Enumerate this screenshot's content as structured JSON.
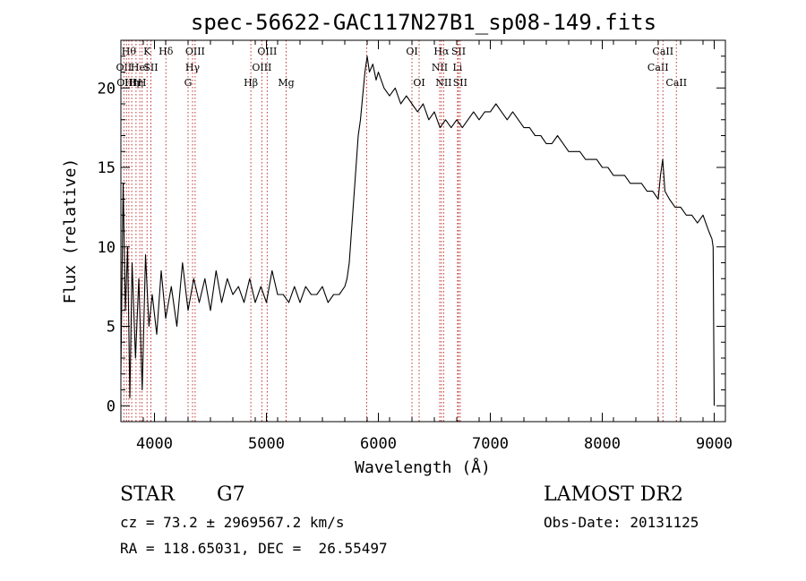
{
  "chart_data": {
    "type": "line",
    "title": "spec-56622-GAC117N27B1_sp08-149.fits",
    "xlabel": "Wavelength (Å)",
    "ylabel": "Flux (relative)",
    "xlim": [
      3700,
      9100
    ],
    "ylim": [
      -1,
      23
    ],
    "x_ticks": [
      4000,
      5000,
      6000,
      7000,
      8000,
      9000
    ],
    "y_ticks": [
      0,
      5,
      10,
      15,
      20
    ],
    "grid": false,
    "line_color": "#000000",
    "marker_color": "#c03030",
    "spectrum": {
      "x": [
        3700,
        3720,
        3740,
        3760,
        3780,
        3800,
        3830,
        3860,
        3890,
        3920,
        3950,
        3980,
        4020,
        4060,
        4100,
        4150,
        4200,
        4250,
        4300,
        4350,
        4400,
        4450,
        4500,
        4550,
        4600,
        4650,
        4700,
        4750,
        4800,
        4850,
        4900,
        4950,
        5000,
        5050,
        5100,
        5150,
        5200,
        5250,
        5300,
        5350,
        5400,
        5450,
        5500,
        5550,
        5600,
        5650,
        5700,
        5720,
        5740,
        5760,
        5780,
        5800,
        5820,
        5840,
        5860,
        5880,
        5900,
        5920,
        5950,
        5980,
        6000,
        6050,
        6100,
        6150,
        6200,
        6250,
        6300,
        6350,
        6400,
        6450,
        6500,
        6550,
        6600,
        6650,
        6700,
        6750,
        6800,
        6850,
        6900,
        6950,
        7000,
        7050,
        7100,
        7150,
        7200,
        7250,
        7300,
        7350,
        7400,
        7450,
        7500,
        7550,
        7600,
        7650,
        7700,
        7750,
        7800,
        7850,
        7900,
        7950,
        8000,
        8050,
        8100,
        8150,
        8200,
        8250,
        8300,
        8350,
        8400,
        8450,
        8500,
        8520,
        8540,
        8560,
        8600,
        8650,
        8700,
        8750,
        8800,
        8850,
        8900,
        8950,
        8980,
        8990,
        9000
      ],
      "y": [
        2.0,
        14.0,
        6.0,
        10.0,
        0.5,
        9.0,
        3.0,
        8.0,
        1.0,
        9.5,
        5.0,
        7.0,
        4.5,
        8.5,
        5.5,
        7.5,
        5.0,
        9.0,
        6.0,
        8.0,
        6.5,
        8.0,
        6.0,
        8.5,
        6.5,
        8.0,
        7.0,
        7.5,
        6.5,
        8.0,
        6.5,
        7.5,
        6.5,
        8.5,
        7.0,
        7.0,
        6.5,
        7.5,
        6.5,
        7.5,
        7.0,
        7.0,
        7.5,
        6.5,
        7.0,
        7.0,
        7.5,
        8.0,
        9.0,
        11.0,
        13.0,
        15.0,
        17.0,
        18.0,
        19.5,
        21.0,
        22.0,
        21.0,
        21.5,
        20.5,
        21.0,
        20.0,
        19.5,
        20.0,
        19.0,
        19.5,
        19.0,
        18.5,
        19.0,
        18.0,
        18.5,
        17.5,
        18.0,
        17.5,
        18.0,
        17.5,
        18.0,
        18.5,
        18.0,
        18.5,
        18.5,
        19.0,
        18.5,
        18.0,
        18.5,
        18.0,
        17.5,
        17.5,
        17.0,
        17.0,
        16.5,
        16.5,
        17.0,
        16.5,
        16.0,
        16.0,
        16.0,
        15.5,
        15.5,
        15.5,
        15.0,
        15.0,
        14.5,
        14.5,
        14.5,
        14.0,
        14.0,
        14.0,
        13.5,
        13.5,
        13.0,
        14.5,
        15.5,
        13.5,
        13.0,
        12.5,
        12.5,
        12.0,
        12.0,
        11.5,
        12.0,
        11.0,
        10.5,
        10.0,
        0.0
      ]
    },
    "line_markers": [
      {
        "x": 3727,
        "label": "OII",
        "row": 1
      },
      {
        "x": 3750,
        "label": "OIII",
        "row": 2
      },
      {
        "x": 3771,
        "label": "Hθ",
        "row": 0
      },
      {
        "x": 3797,
        "label": "Hη",
        "row": 2
      },
      {
        "x": 3835,
        "label": "Hη",
        "row": 2
      },
      {
        "x": 3869,
        "label": "HeI",
        "row": 1
      },
      {
        "x": 3889,
        "label": "H",
        "row": 2
      },
      {
        "x": 3934,
        "label": "K",
        "row": 0
      },
      {
        "x": 3968,
        "label": "SII",
        "row": 1
      },
      {
        "x": 4102,
        "label": "Hδ",
        "row": 0
      },
      {
        "x": 4300,
        "label": "G",
        "row": 2
      },
      {
        "x": 4340,
        "label": "Hγ",
        "row": 1
      },
      {
        "x": 4363,
        "label": "OIII",
        "row": 0
      },
      {
        "x": 4861,
        "label": "Hβ",
        "row": 2
      },
      {
        "x": 4959,
        "label": "OIII",
        "row": 1
      },
      {
        "x": 5007,
        "label": "OIII",
        "row": 0
      },
      {
        "x": 5176,
        "label": "Mg",
        "row": 2
      },
      {
        "x": 5896,
        "label": "",
        "row": 0
      },
      {
        "x": 6300,
        "label": "OI",
        "row": 0
      },
      {
        "x": 6364,
        "label": "OI",
        "row": 2
      },
      {
        "x": 6548,
        "label": "NII",
        "row": 1
      },
      {
        "x": 6563,
        "label": "Hα",
        "row": 0
      },
      {
        "x": 6583,
        "label": "NII",
        "row": 2
      },
      {
        "x": 6707,
        "label": "Li",
        "row": 1
      },
      {
        "x": 6716,
        "label": "SII",
        "row": 0
      },
      {
        "x": 6731,
        "label": "SII",
        "row": 2
      },
      {
        "x": 8498,
        "label": "CaII",
        "row": 1
      },
      {
        "x": 8542,
        "label": "CaII",
        "row": 0
      },
      {
        "x": 8662,
        "label": "CaII",
        "row": 2
      }
    ]
  },
  "footer": {
    "object_class": "STAR",
    "subclass": "G7",
    "cz_line": "cz = 73.2 ± 2969567.2 km/s",
    "radec_line": "RA = 118.65031, DEC =  26.55497",
    "survey": "LAMOST DR2",
    "obs_date": "Obs-Date: 20131125"
  }
}
